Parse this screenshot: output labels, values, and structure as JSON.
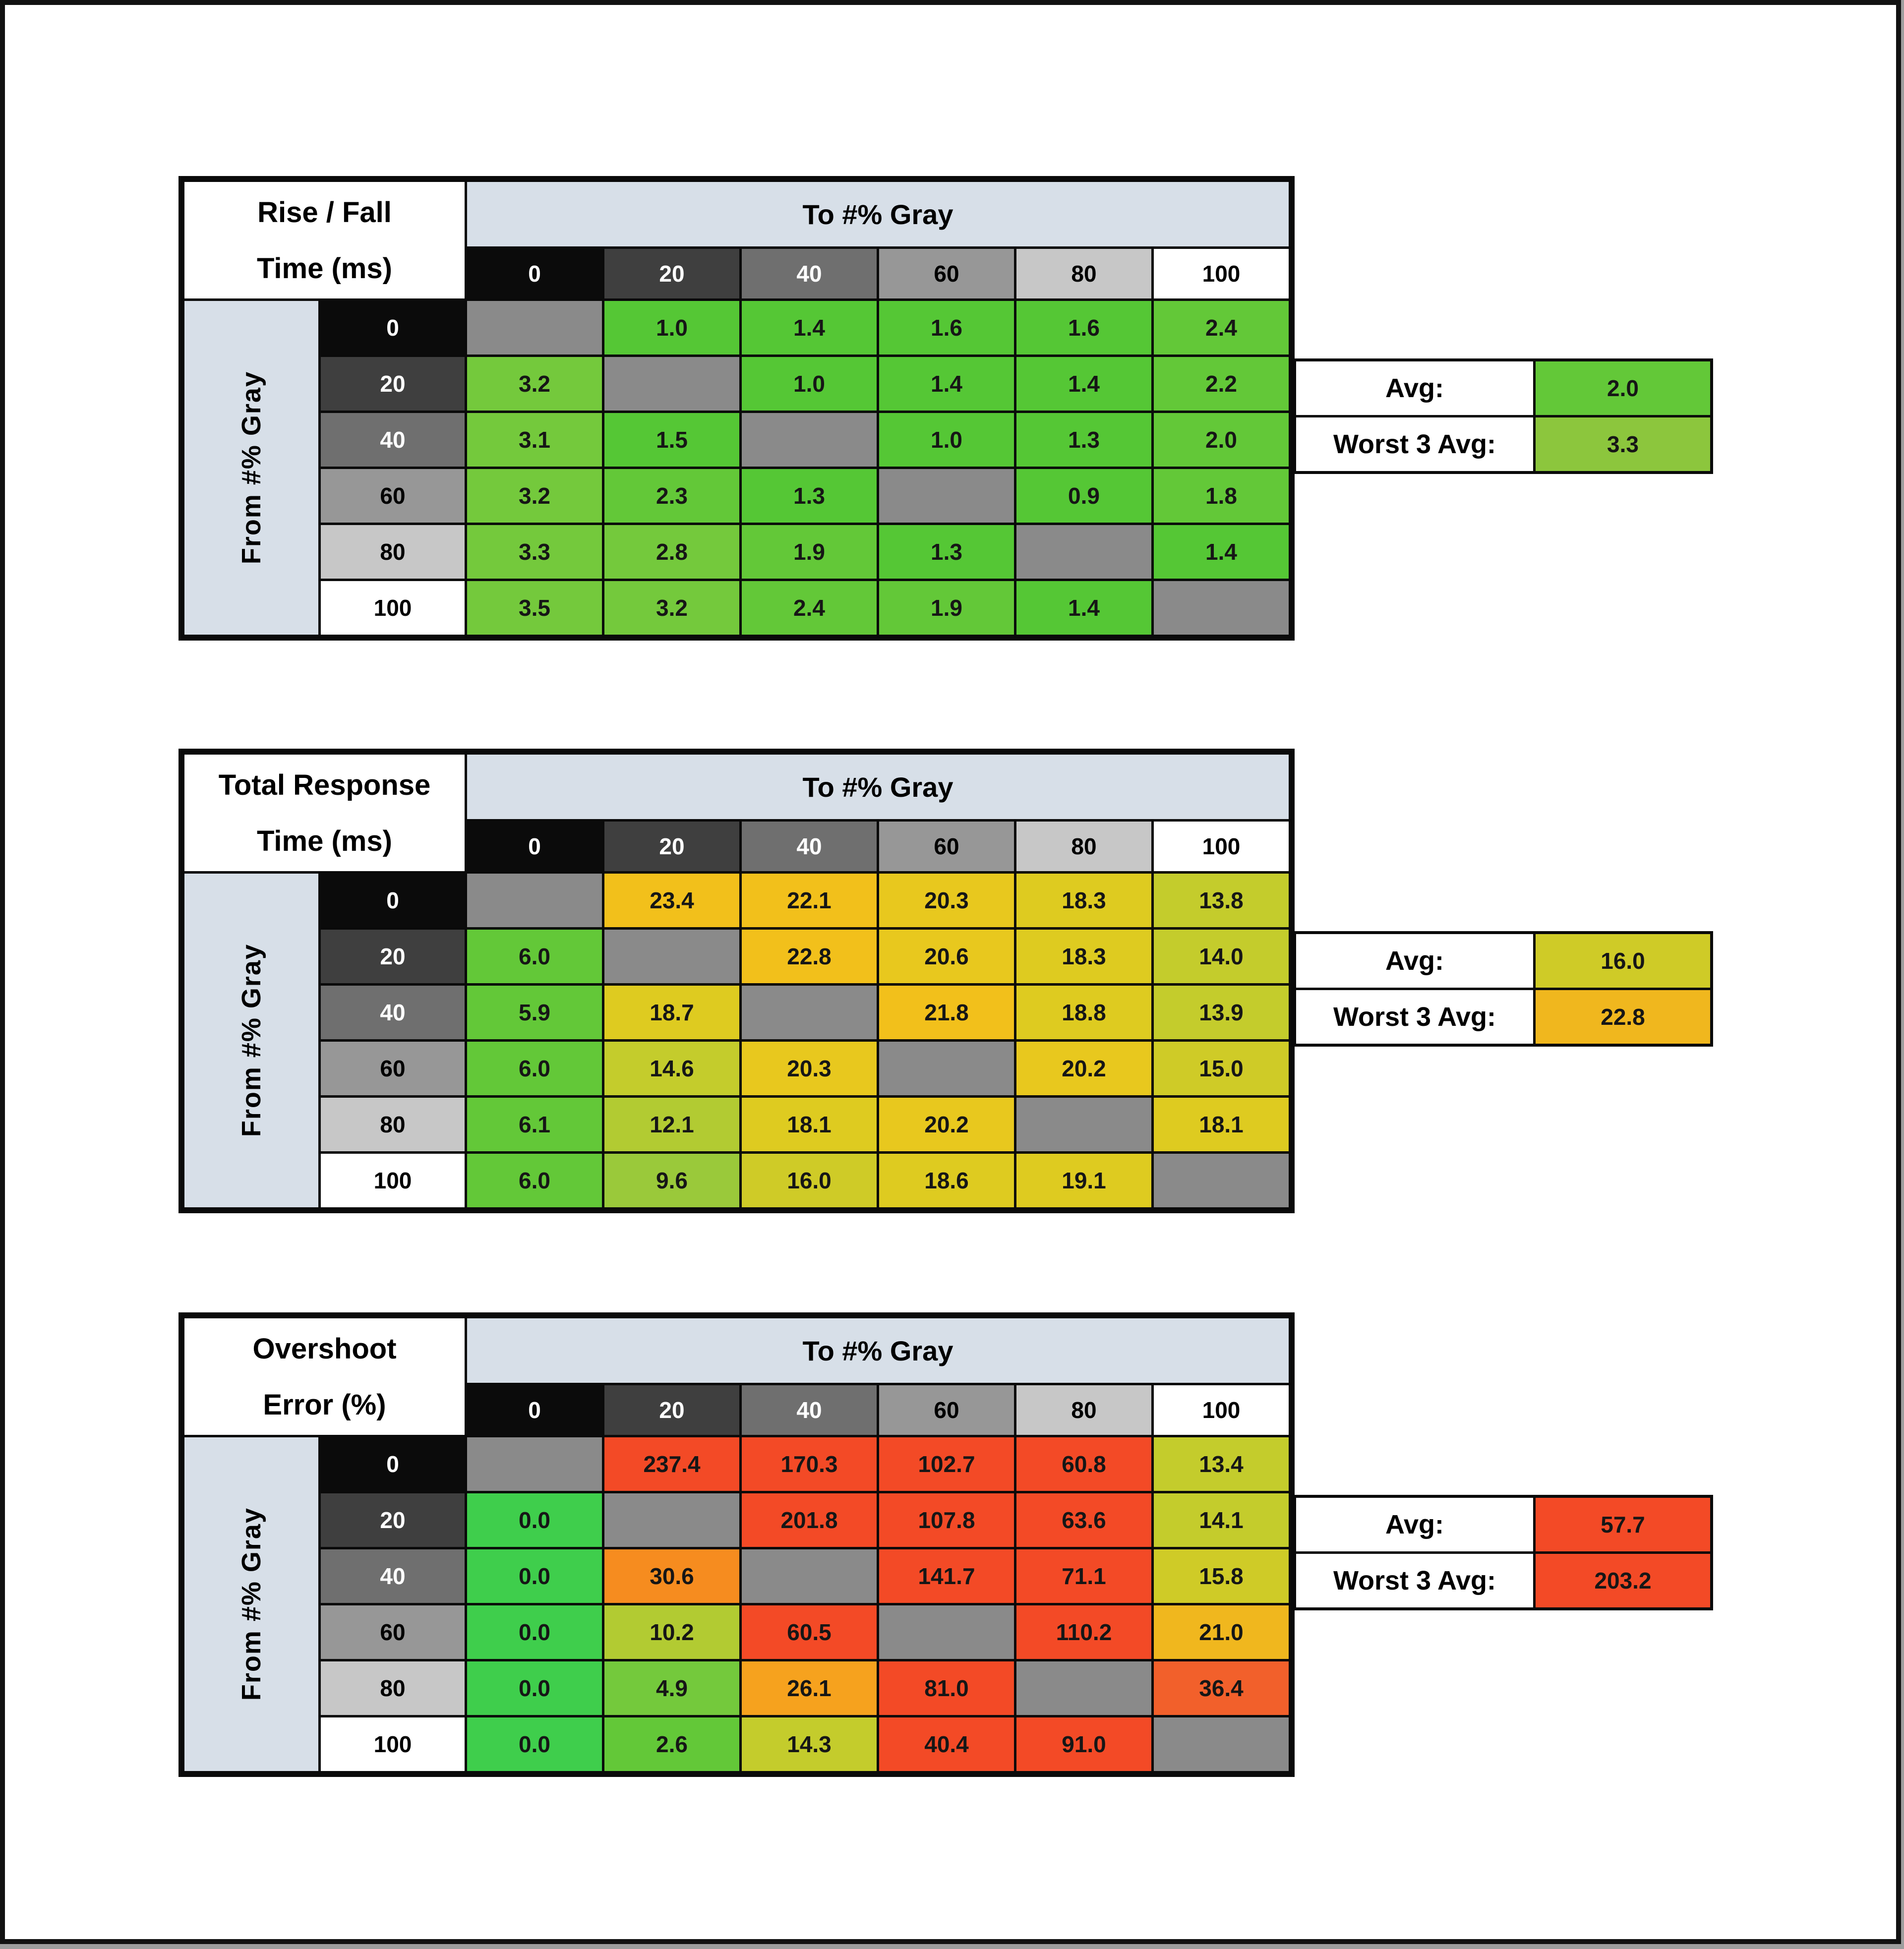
{
  "palette": {
    "diag": "#8A8A8A",
    "g0": "#3FCE4C",
    "g1": "#55C735",
    "g2": "#63C838",
    "g3": "#74C93C",
    "yg": "#8CC63D",
    "yg2": "#9AC93A",
    "ol1": "#B2CB32",
    "ol2": "#C4CC2C",
    "ol3": "#CFCB27",
    "y1": "#DECB20",
    "y2": "#E8C81E",
    "gd": "#F2C01B",
    "gd2": "#F0B71E",
    "or1": "#F6A21E",
    "or2": "#F68C1F",
    "ro": "#F2602B",
    "red": "#F34A26"
  },
  "header_shades": {
    "bg": [
      "#0B0B0B",
      "#3F3F3F",
      "#6F6F6F",
      "#979797",
      "#C7C7C7",
      "#FFFFFF"
    ],
    "text": [
      "#FFFFFF",
      "#FFFFFF",
      "#FFFFFF",
      "#000000",
      "#000000",
      "#000000"
    ]
  },
  "chart_data": [
    {
      "type": "heatmap",
      "title_line1": "Rise / Fall",
      "title_line2": "Time (ms)",
      "col_axis": "To #% Gray",
      "row_axis": "From #% Gray",
      "columns": [
        "0",
        "20",
        "40",
        "60",
        "80",
        "100"
      ],
      "rows": [
        "0",
        "20",
        "40",
        "60",
        "80",
        "100"
      ],
      "cells": [
        [
          null,
          "1.0",
          "1.4",
          "1.6",
          "1.6",
          "2.4"
        ],
        [
          "3.2",
          null,
          "1.0",
          "1.4",
          "1.4",
          "2.2"
        ],
        [
          "3.1",
          "1.5",
          null,
          "1.0",
          "1.3",
          "2.0"
        ],
        [
          "3.2",
          "2.3",
          "1.3",
          null,
          "0.9",
          "1.8"
        ],
        [
          "3.3",
          "2.8",
          "1.9",
          "1.3",
          null,
          "1.4"
        ],
        [
          "3.5",
          "3.2",
          "2.4",
          "1.9",
          "1.4",
          null
        ]
      ],
      "colors": [
        [
          "diag",
          "g1",
          "g1",
          "g1",
          "g1",
          "g2"
        ],
        [
          "g3",
          "diag",
          "g1",
          "g1",
          "g1",
          "g2"
        ],
        [
          "g3",
          "g1",
          "diag",
          "g1",
          "g1",
          "g2"
        ],
        [
          "g3",
          "g2",
          "g1",
          "diag",
          "g1",
          "g2"
        ],
        [
          "g3",
          "g3",
          "g2",
          "g1",
          "diag",
          "g1"
        ],
        [
          "g3",
          "g3",
          "g2",
          "g2",
          "g1",
          "diag"
        ]
      ],
      "avg_label": "Avg:",
      "avg_value": "2.0",
      "avg_color": "g2",
      "worst3_label": "Worst 3 Avg:",
      "worst3_value": "3.3",
      "worst3_color": "yg"
    },
    {
      "type": "heatmap",
      "title_line1": "Total Response",
      "title_line2": "Time (ms)",
      "col_axis": "To #% Gray",
      "row_axis": "From #% Gray",
      "columns": [
        "0",
        "20",
        "40",
        "60",
        "80",
        "100"
      ],
      "rows": [
        "0",
        "20",
        "40",
        "60",
        "80",
        "100"
      ],
      "cells": [
        [
          null,
          "23.4",
          "22.1",
          "20.3",
          "18.3",
          "13.8"
        ],
        [
          "6.0",
          null,
          "22.8",
          "20.6",
          "18.3",
          "14.0"
        ],
        [
          "5.9",
          "18.7",
          null,
          "21.8",
          "18.8",
          "13.9"
        ],
        [
          "6.0",
          "14.6",
          "20.3",
          null,
          "20.2",
          "15.0"
        ],
        [
          "6.1",
          "12.1",
          "18.1",
          "20.2",
          null,
          "18.1"
        ],
        [
          "6.0",
          "9.6",
          "16.0",
          "18.6",
          "19.1",
          null
        ]
      ],
      "colors": [
        [
          "diag",
          "gd",
          "gd",
          "y2",
          "y1",
          "ol2"
        ],
        [
          "g2",
          "diag",
          "gd",
          "y2",
          "y1",
          "ol2"
        ],
        [
          "g2",
          "y1",
          "diag",
          "gd",
          "y1",
          "ol2"
        ],
        [
          "g2",
          "ol2",
          "y2",
          "diag",
          "y2",
          "ol3"
        ],
        [
          "g2",
          "ol1",
          "y1",
          "y2",
          "diag",
          "y1"
        ],
        [
          "g2",
          "yg2",
          "ol3",
          "y1",
          "y1",
          "diag"
        ]
      ],
      "avg_label": "Avg:",
      "avg_value": "16.0",
      "avg_color": "ol3",
      "worst3_label": "Worst 3 Avg:",
      "worst3_value": "22.8",
      "worst3_color": "gd2"
    },
    {
      "type": "heatmap",
      "title_line1": "Overshoot",
      "title_line2": "Error (%)",
      "col_axis": "To #% Gray",
      "row_axis": "From #% Gray",
      "columns": [
        "0",
        "20",
        "40",
        "60",
        "80",
        "100"
      ],
      "rows": [
        "0",
        "20",
        "40",
        "60",
        "80",
        "100"
      ],
      "cells": [
        [
          null,
          "237.4",
          "170.3",
          "102.7",
          "60.8",
          "13.4"
        ],
        [
          "0.0",
          null,
          "201.8",
          "107.8",
          "63.6",
          "14.1"
        ],
        [
          "0.0",
          "30.6",
          null,
          "141.7",
          "71.1",
          "15.8"
        ],
        [
          "0.0",
          "10.2",
          "60.5",
          null,
          "110.2",
          "21.0"
        ],
        [
          "0.0",
          "4.9",
          "26.1",
          "81.0",
          null,
          "36.4"
        ],
        [
          "0.0",
          "2.6",
          "14.3",
          "40.4",
          "91.0",
          null
        ]
      ],
      "colors": [
        [
          "diag",
          "red",
          "red",
          "red",
          "red",
          "ol2"
        ],
        [
          "g0",
          "diag",
          "red",
          "red",
          "red",
          "ol2"
        ],
        [
          "g0",
          "or2",
          "diag",
          "red",
          "red",
          "ol3"
        ],
        [
          "g0",
          "ol1",
          "red",
          "diag",
          "red",
          "gd2"
        ],
        [
          "g0",
          "g3",
          "or1",
          "red",
          "diag",
          "ro"
        ],
        [
          "g0",
          "g2",
          "ol2",
          "red",
          "red",
          "diag"
        ]
      ],
      "avg_label": "Avg:",
      "avg_value": "57.7",
      "avg_color": "red",
      "worst3_label": "Worst 3 Avg:",
      "worst3_value": "203.2",
      "worst3_color": "red"
    }
  ]
}
